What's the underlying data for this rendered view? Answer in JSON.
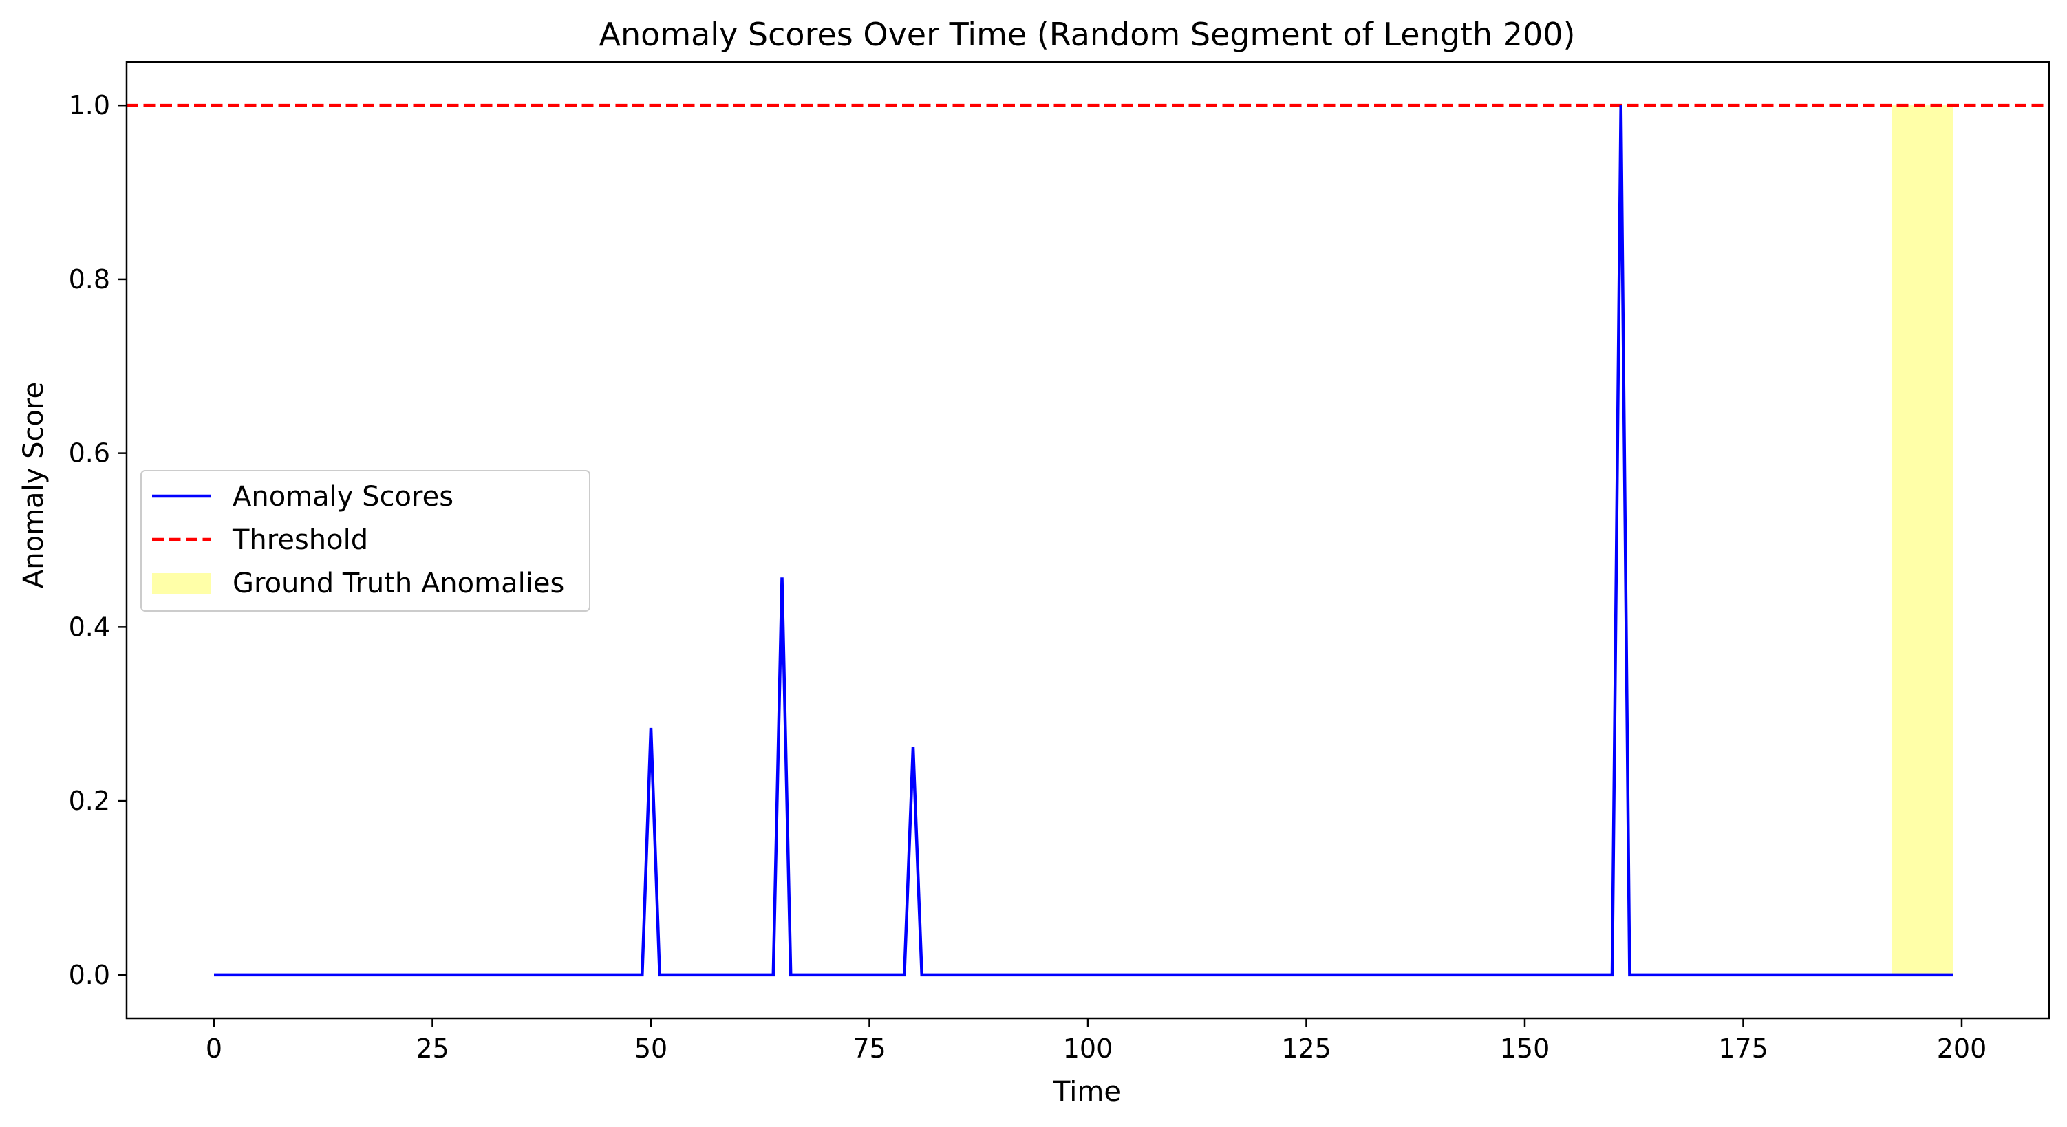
{
  "chart_data": {
    "type": "line",
    "title": "Anomaly Scores Over Time (Random Segment of Length 200)",
    "xlabel": "Time",
    "ylabel": "Anomaly Score",
    "xlim": [
      -10,
      210
    ],
    "ylim": [
      -0.05,
      1.05
    ],
    "xticks": [
      0,
      25,
      50,
      75,
      100,
      125,
      150,
      175,
      200
    ],
    "yticks": [
      0.0,
      0.2,
      0.4,
      0.6,
      0.8,
      1.0
    ],
    "xtick_labels": [
      "0",
      "25",
      "50",
      "75",
      "100",
      "125",
      "150",
      "175",
      "200"
    ],
    "ytick_labels": [
      "0.0",
      "0.2",
      "0.4",
      "0.6",
      "0.8",
      "1.0"
    ],
    "grid": false,
    "legend_position": "center-left",
    "series": [
      {
        "name": "Anomaly Scores",
        "style": "solid",
        "color": "#0000ff",
        "x_range": [
          0,
          199
        ],
        "baseline": 0.0,
        "spikes": [
          {
            "x": 50,
            "y": 0.284
          },
          {
            "x": 65,
            "y": 0.457
          },
          {
            "x": 80,
            "y": 0.262
          },
          {
            "x": 161,
            "y": 1.0
          }
        ]
      },
      {
        "name": "Threshold",
        "style": "dashed",
        "color": "#ff0000",
        "y": 1.0
      }
    ],
    "shaded_regions": [
      {
        "name": "Ground Truth Anomalies",
        "color": "#ffff99",
        "x_start": 192,
        "x_end": 199,
        "y_start": 0.0,
        "y_end": 1.0
      }
    ],
    "legend": [
      "Anomaly Scores",
      "Threshold",
      "Ground Truth Anomalies"
    ]
  }
}
